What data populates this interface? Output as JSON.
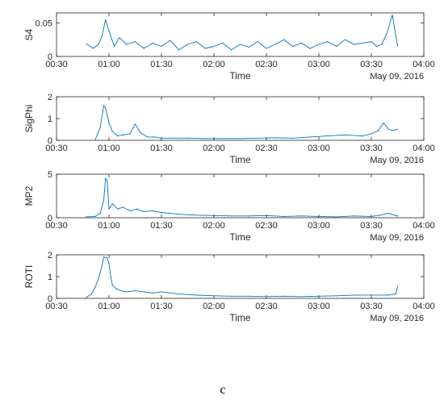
{
  "figure_caption": "c",
  "colors": {
    "line": "#0072BD",
    "axis": "#262626",
    "background": "#ffffff"
  },
  "chart_data": [
    {
      "type": "line",
      "ylabel": "S4",
      "xlabel": "Time",
      "date_label": "May 09, 2016",
      "x_ticks": [
        "00:30",
        "01:00",
        "01:30",
        "02:00",
        "02:30",
        "03:00",
        "03:30",
        "04:00"
      ],
      "y_ticks": [
        "0",
        "0.05"
      ],
      "xlim": [
        "00:30",
        "04:00"
      ],
      "ylim": [
        0,
        0.065
      ],
      "grid": false,
      "series": [
        {
          "x": [
            "00:47",
            "00:51",
            "00:54",
            "00:56",
            "00:58",
            "01:00",
            "01:03",
            "01:06",
            "01:10",
            "01:15",
            "01:20",
            "01:25",
            "01:30",
            "01:35",
            "01:40",
            "01:45",
            "01:50",
            "01:55",
            "02:00",
            "02:05",
            "02:10",
            "02:15",
            "02:20",
            "02:25",
            "02:30",
            "02:35",
            "02:40",
            "02:45",
            "02:50",
            "02:55",
            "03:00",
            "03:05",
            "03:10",
            "03:15",
            "03:20",
            "03:25",
            "03:30",
            "03:33",
            "03:36",
            "03:39",
            "03:42",
            "03:45"
          ],
          "y": [
            0.019,
            0.012,
            0.018,
            0.03,
            0.055,
            0.038,
            0.015,
            0.028,
            0.018,
            0.022,
            0.012,
            0.02,
            0.015,
            0.024,
            0.01,
            0.018,
            0.022,
            0.012,
            0.015,
            0.02,
            0.01,
            0.018,
            0.014,
            0.022,
            0.012,
            0.018,
            0.025,
            0.015,
            0.02,
            0.012,
            0.018,
            0.022,
            0.015,
            0.025,
            0.018,
            0.02,
            0.022,
            0.015,
            0.018,
            0.035,
            0.062,
            0.015
          ]
        }
      ]
    },
    {
      "type": "line",
      "ylabel": "SigPhi",
      "xlabel": "Time",
      "date_label": "May 09, 2016",
      "x_ticks": [
        "00:30",
        "01:00",
        "01:30",
        "02:00",
        "02:30",
        "03:00",
        "03:30",
        "04:00"
      ],
      "y_ticks": [
        "0",
        "1",
        "2"
      ],
      "xlim": [
        "00:30",
        "04:00"
      ],
      "ylim": [
        0,
        2
      ],
      "grid": false,
      "series": [
        {
          "x": [
            "00:52",
            "00:55",
            "00:57",
            "00:58",
            "01:00",
            "01:02",
            "01:05",
            "01:08",
            "01:12",
            "01:15",
            "01:18",
            "01:22",
            "01:26",
            "01:30",
            "01:35",
            "01:45",
            "01:55",
            "02:05",
            "02:15",
            "02:25",
            "02:35",
            "02:45",
            "02:55",
            "03:05",
            "03:15",
            "03:25",
            "03:30",
            "03:34",
            "03:37",
            "03:40",
            "03:42",
            "03:45"
          ],
          "y": [
            0.0,
            0.6,
            1.6,
            1.5,
            0.8,
            0.4,
            0.2,
            0.25,
            0.3,
            0.75,
            0.35,
            0.15,
            0.15,
            0.1,
            0.1,
            0.1,
            0.08,
            0.08,
            0.08,
            0.1,
            0.12,
            0.1,
            0.15,
            0.2,
            0.25,
            0.2,
            0.3,
            0.45,
            0.8,
            0.5,
            0.45,
            0.5
          ]
        }
      ]
    },
    {
      "type": "line",
      "ylabel": "MP2",
      "xlabel": "Time",
      "date_label": "May 09, 2016",
      "x_ticks": [
        "00:30",
        "01:00",
        "01:30",
        "02:00",
        "02:30",
        "03:00",
        "03:30",
        "04:00"
      ],
      "y_ticks": [
        "0",
        "5"
      ],
      "xlim": [
        "00:30",
        "04:00"
      ],
      "ylim": [
        0,
        5
      ],
      "grid": false,
      "series": [
        {
          "x": [
            "00:47",
            "00:52",
            "00:55",
            "00:57",
            "00:58",
            "00:59",
            "01:00",
            "01:02",
            "01:05",
            "01:08",
            "01:12",
            "01:16",
            "01:20",
            "01:25",
            "01:30",
            "01:35",
            "01:40",
            "01:50",
            "02:00",
            "02:10",
            "02:20",
            "02:30",
            "02:40",
            "02:50",
            "03:00",
            "03:10",
            "03:20",
            "03:30",
            "03:35",
            "03:40",
            "03:43",
            "03:45"
          ],
          "y": [
            0.1,
            0.15,
            0.5,
            2.0,
            4.5,
            4.2,
            1.0,
            1.6,
            1.0,
            1.2,
            0.8,
            1.0,
            0.7,
            0.8,
            0.6,
            0.5,
            0.4,
            0.3,
            0.25,
            0.2,
            0.2,
            0.25,
            0.15,
            0.2,
            0.15,
            0.1,
            0.2,
            0.15,
            0.3,
            0.5,
            0.3,
            0.2
          ]
        }
      ]
    },
    {
      "type": "line",
      "ylabel": "ROTI",
      "xlabel": "Time",
      "date_label": "May 09, 2016",
      "x_ticks": [
        "00:30",
        "01:00",
        "01:30",
        "02:00",
        "02:30",
        "03:00",
        "03:30",
        "04:00"
      ],
      "y_ticks": [
        "0",
        "1",
        "2"
      ],
      "xlim": [
        "00:30",
        "04:00"
      ],
      "ylim": [
        0,
        2
      ],
      "grid": false,
      "series": [
        {
          "x": [
            "00:47",
            "00:50",
            "00:52",
            "00:54",
            "00:56",
            "00:57",
            "00:59",
            "01:00",
            "01:01",
            "01:02",
            "01:04",
            "01:07",
            "01:10",
            "01:15",
            "01:20",
            "01:25",
            "01:30",
            "01:40",
            "01:50",
            "02:00",
            "02:10",
            "02:20",
            "02:30",
            "02:40",
            "02:50",
            "03:00",
            "03:10",
            "03:20",
            "03:30",
            "03:40",
            "03:44",
            "03:45"
          ],
          "y": [
            0.05,
            0.2,
            0.5,
            0.9,
            1.5,
            1.9,
            1.85,
            1.6,
            1.0,
            0.6,
            0.45,
            0.35,
            0.3,
            0.35,
            0.3,
            0.25,
            0.3,
            0.2,
            0.15,
            0.12,
            0.1,
            0.1,
            0.08,
            0.1,
            0.08,
            0.1,
            0.12,
            0.15,
            0.15,
            0.15,
            0.2,
            0.55
          ]
        }
      ]
    }
  ]
}
